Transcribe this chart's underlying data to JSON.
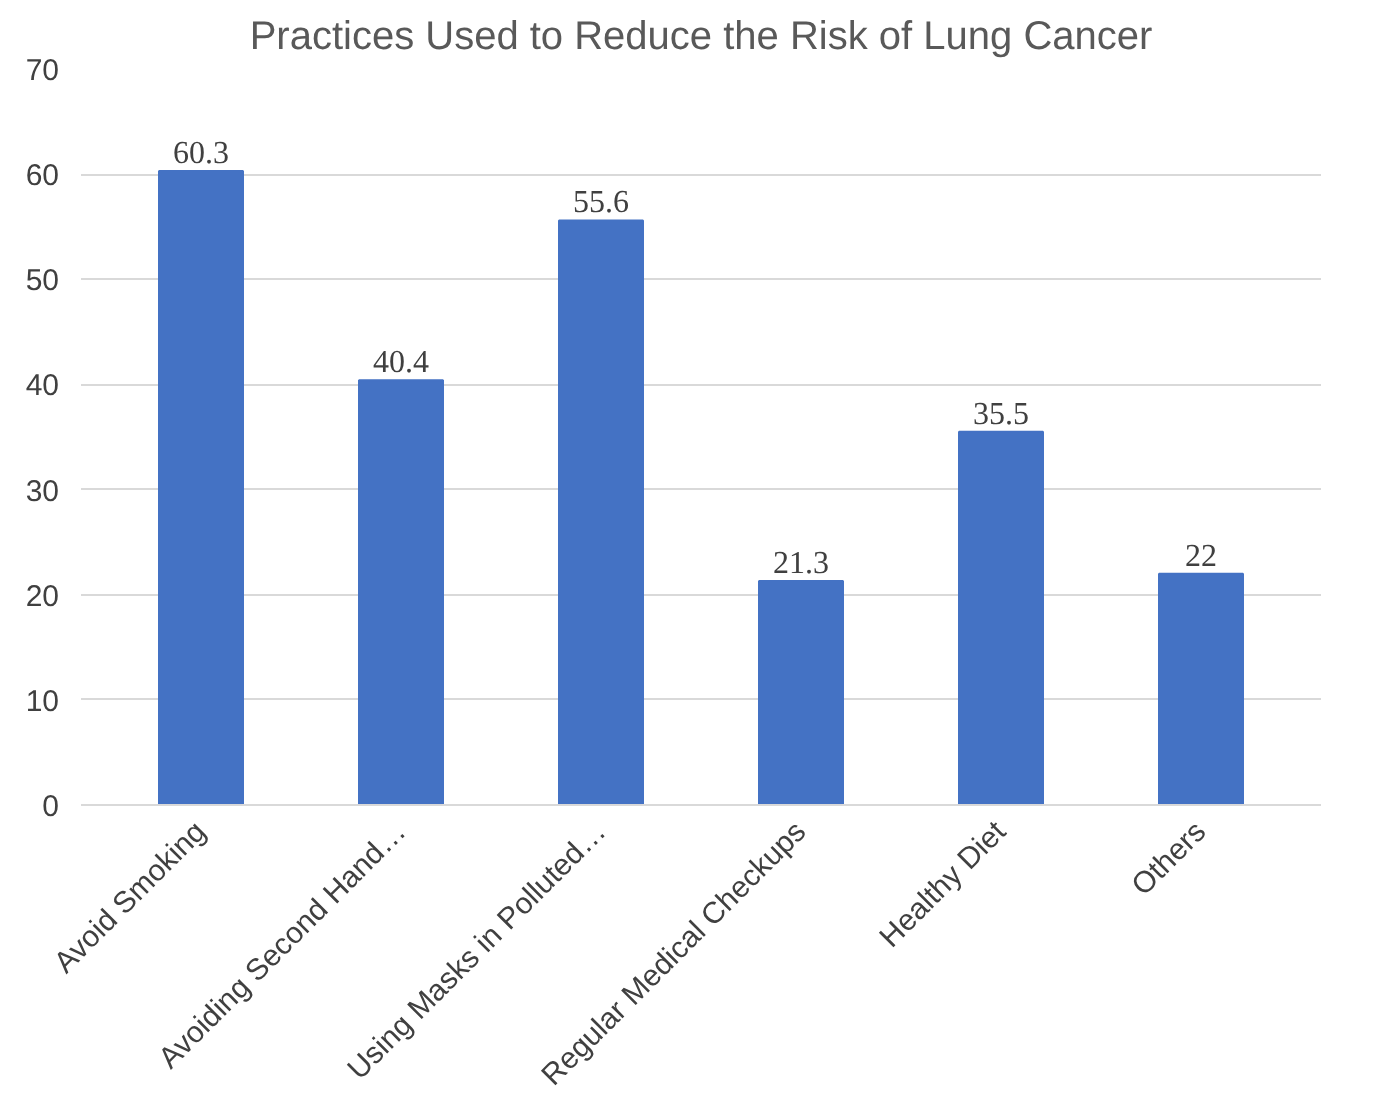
{
  "chart_data": {
    "type": "bar",
    "title": "Practices Used to Reduce the Risk of Lung Cancer",
    "categories": [
      "Avoid Smoking",
      "Avoiding Second Hand…",
      "Using Masks in Polluted…",
      "Regular Medical Checkups",
      "Healthy Diet",
      "Others"
    ],
    "values": [
      60.3,
      40.4,
      55.6,
      21.3,
      35.5,
      22
    ],
    "color": "#4472c4",
    "ylim": [
      0,
      70
    ],
    "yticks": [
      0,
      10,
      20,
      30,
      40,
      50,
      60,
      70
    ],
    "grid": "y",
    "data_labels": true
  }
}
